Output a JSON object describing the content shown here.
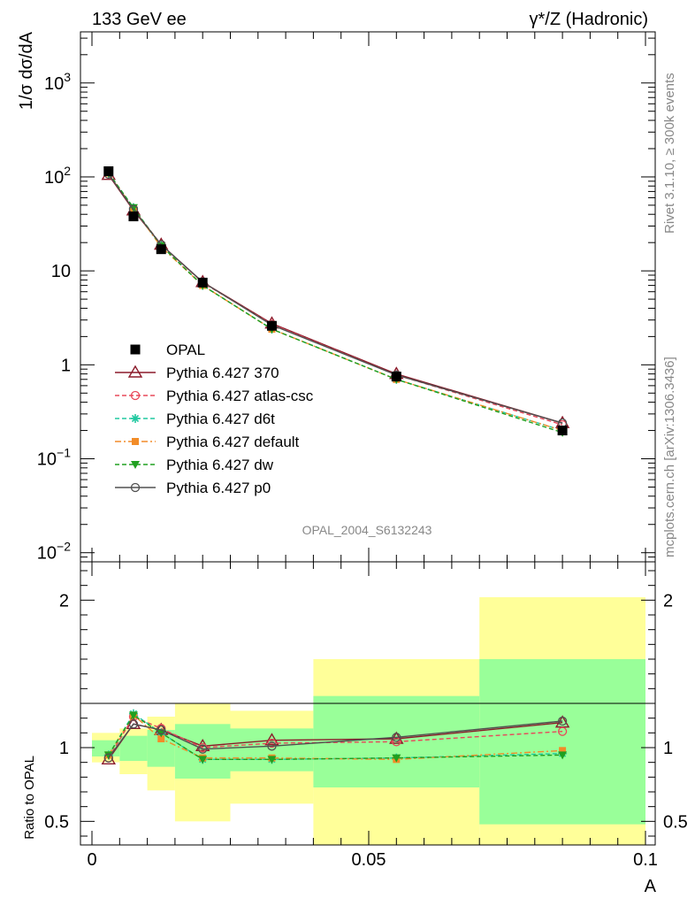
{
  "header": {
    "left_title": "133 GeV ee",
    "right_title": "γ*/Z (Hadronic)"
  },
  "side_text": {
    "rivet": "Rivet 3.1.10, ≥ 300k events",
    "mcplots": "mcplots.cern.ch [arXiv:1306.3436]"
  },
  "watermark": "OPAL_2004_S6132243",
  "colors": {
    "opal": "#000000",
    "p370": "#8b1a2a",
    "atlas": "#e8485a",
    "d6t": "#20c8a0",
    "default": "#f28c28",
    "dw": "#20a020",
    "p0": "#505050",
    "band_outer": "#ffff99",
    "band_inner": "#99ff99"
  },
  "chart_data": [
    {
      "type": "scatter",
      "panel": "main",
      "ylabel": "1/σ dσ/dA",
      "yscale": "log",
      "ylim": [
        0.008,
        3500
      ],
      "xlim": [
        -0.002,
        0.1
      ],
      "ytick_labels": [
        "10^3",
        "10^2",
        "10",
        "1",
        "10^-1",
        "10^-2"
      ],
      "legend_position": "center-left",
      "x": [
        0.003,
        0.0075,
        0.0125,
        0.02,
        0.0325,
        0.055,
        0.085
      ],
      "series": [
        {
          "key": "opal",
          "name": "OPAL",
          "marker": "square",
          "dash": "none",
          "values": [
            115,
            38,
            17,
            7.5,
            2.6,
            0.75,
            0.2
          ]
        },
        {
          "key": "p370",
          "name": "Pythia 6.427 370",
          "marker": "triangle-open",
          "dash": "solid",
          "values": [
            105,
            44,
            19,
            7.6,
            2.75,
            0.8,
            0.24
          ]
        },
        {
          "key": "atlas",
          "name": "Pythia 6.427 atlas-csc",
          "marker": "circle-open",
          "dash": "dashed",
          "values": [
            107,
            46,
            19,
            7.5,
            2.7,
            0.78,
            0.23
          ]
        },
        {
          "key": "d6t",
          "name": "Pythia 6.427 d6t",
          "marker": "star",
          "dash": "dashed",
          "values": [
            110,
            47,
            18.5,
            7.0,
            2.4,
            0.7,
            0.2
          ]
        },
        {
          "key": "default",
          "name": "Pythia 6.427 default",
          "marker": "square-filled",
          "dash": "dashdot",
          "values": [
            110,
            46,
            18,
            7.0,
            2.4,
            0.7,
            0.2
          ]
        },
        {
          "key": "dw",
          "name": "Pythia 6.427 dw",
          "marker": "triangle-down",
          "dash": "dashed",
          "values": [
            110,
            47,
            18.5,
            7.0,
            2.4,
            0.7,
            0.19
          ]
        },
        {
          "key": "p0",
          "name": "Pythia 6.427 p0",
          "marker": "circle-open",
          "dash": "solid",
          "values": [
            107,
            45,
            19,
            7.6,
            2.65,
            0.78,
            0.24
          ]
        }
      ]
    },
    {
      "type": "line",
      "panel": "ratio",
      "ylabel": "Ratio to OPAL",
      "xlabel": "A",
      "ylim": [
        0.34,
        2.26
      ],
      "xlim": [
        -0.002,
        0.1
      ],
      "ytick_labels": [
        "2",
        "1",
        "0.5"
      ],
      "xtick_labels": [
        "0",
        "0.05",
        "0.1"
      ],
      "bins": [
        {
          "lo": 0.0,
          "hi": 0.005,
          "outer": [
            0.9,
            1.1
          ],
          "inner": [
            0.94,
            1.05
          ]
        },
        {
          "lo": 0.005,
          "hi": 0.01,
          "outer": [
            0.82,
            1.13
          ],
          "inner": [
            0.91,
            1.08
          ]
        },
        {
          "lo": 0.01,
          "hi": 0.015,
          "outer": [
            0.71,
            1.21
          ],
          "inner": [
            0.87,
            1.12
          ]
        },
        {
          "lo": 0.015,
          "hi": 0.025,
          "outer": [
            0.5,
            1.3
          ],
          "inner": [
            0.79,
            1.16
          ]
        },
        {
          "lo": 0.025,
          "hi": 0.04,
          "outer": [
            0.62,
            1.25
          ],
          "inner": [
            0.84,
            1.13
          ]
        },
        {
          "lo": 0.04,
          "hi": 0.07,
          "outer": [
            0.34,
            1.6
          ],
          "inner": [
            0.73,
            1.35
          ]
        },
        {
          "lo": 0.07,
          "hi": 0.1,
          "outer": [
            0.34,
            2.02
          ],
          "inner": [
            0.48,
            1.6
          ]
        }
      ],
      "x": [
        0.003,
        0.0075,
        0.0125,
        0.02,
        0.0325,
        0.055,
        0.085
      ],
      "series": [
        {
          "key": "p370",
          "values": [
            0.92,
            1.16,
            1.12,
            1.01,
            1.05,
            1.06,
            1.17
          ]
        },
        {
          "key": "atlas",
          "values": [
            0.93,
            1.21,
            1.13,
            1.0,
            1.03,
            1.04,
            1.11
          ]
        },
        {
          "key": "d6t",
          "values": [
            0.95,
            1.23,
            1.1,
            0.92,
            0.92,
            0.93,
            0.96
          ]
        },
        {
          "key": "default",
          "values": [
            0.95,
            1.22,
            1.06,
            0.93,
            0.93,
            0.92,
            0.98
          ]
        },
        {
          "key": "dw",
          "values": [
            0.95,
            1.22,
            1.1,
            0.92,
            0.92,
            0.93,
            0.95
          ]
        },
        {
          "key": "p0",
          "values": [
            0.93,
            1.16,
            1.12,
            0.99,
            1.01,
            1.07,
            1.18
          ]
        }
      ]
    }
  ]
}
